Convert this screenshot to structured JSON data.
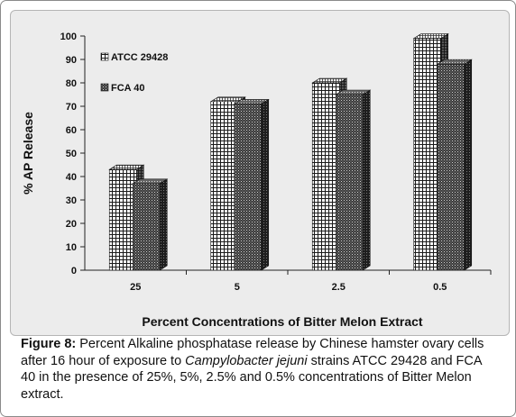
{
  "chart_data": {
    "type": "bar",
    "categories": [
      "25",
      "5",
      "2.5",
      "0.5"
    ],
    "series": [
      {
        "name": "ATCC 29428",
        "values": [
          43,
          72,
          80,
          99
        ]
      },
      {
        "name": "FCA 40",
        "values": [
          37,
          71,
          75,
          88
        ]
      }
    ],
    "xlabel": "Percent Concentrations of Bitter Melon Extract",
    "ylabel": "% AP Release",
    "ylim": [
      0,
      100
    ],
    "yticks": [
      0,
      10,
      20,
      30,
      40,
      50,
      60,
      70,
      80,
      90,
      100
    ],
    "grid": false,
    "legend_position": "top-left",
    "style": "3d-bar"
  },
  "caption": {
    "label": "Figure 8:",
    "text_before": " Percent Alkaline phosphatase release by Chinese hamster ovary cells after 16 hour of exposure to ",
    "italic": "Campylobacter jejuni",
    "text_after": " strains ATCC 29428 and FCA 40 in the presence of 25%, 5%, 2.5% and 0.5% concentrations of Bitter Melon extract."
  },
  "colors": {
    "panel_background": "#ececec",
    "series1_pattern": "grid",
    "series2_pattern": "dense-dots"
  }
}
